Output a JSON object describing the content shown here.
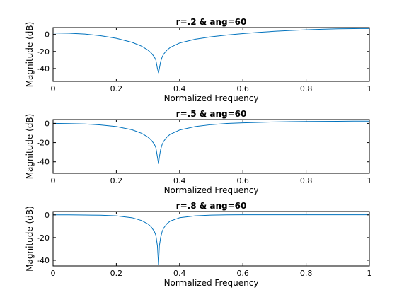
{
  "chart_data": [
    {
      "type": "line",
      "title": "r=.2 & ang=60",
      "xlabel": "Normalized Frequency",
      "ylabel": "Magnitude (dB)",
      "xlim": [
        0,
        1
      ],
      "ylim": [
        -55,
        8
      ],
      "xticks": [
        0,
        0.2,
        0.4,
        0.6,
        0.8,
        1
      ],
      "xtick_labels": [
        "0",
        "0.2",
        "0.4",
        "0.6",
        "0.8",
        "1"
      ],
      "yticks": [
        0,
        -20,
        -40
      ],
      "ytick_labels": [
        "0",
        "-20",
        "-40"
      ],
      "grid": false,
      "color": "#0072bd",
      "series": [
        {
          "x": [
            0,
            0.05,
            0.1,
            0.15,
            0.2,
            0.25,
            0.28,
            0.3,
            0.31,
            0.32,
            0.325,
            0.33,
            0.3333,
            0.336,
            0.34,
            0.345,
            0.35,
            0.36,
            0.37,
            0.4,
            0.45,
            0.5,
            0.55,
            0.6,
            0.65,
            0.7,
            0.75,
            0.8,
            0.85,
            0.9,
            0.95,
            1
          ],
          "y": [
            1.7,
            1.4,
            0.4,
            -1.5,
            -4.5,
            -9.3,
            -13.8,
            -18.4,
            -21.6,
            -26.3,
            -30.1,
            -40.1,
            -45,
            -40.1,
            -32.1,
            -26.3,
            -22.9,
            -18.4,
            -15.4,
            -10.1,
            -5.6,
            -2.8,
            -0.7,
            1.0,
            2.4,
            3.6,
            4.6,
            5.4,
            6.0,
            6.5,
            6.8,
            6.9
          ]
        }
      ]
    },
    {
      "type": "line",
      "title": "r=.5 & ang=60",
      "xlabel": "Normalized Frequency",
      "ylabel": "Magnitude (dB)",
      "xlim": [
        0,
        1
      ],
      "ylim": [
        -52,
        4
      ],
      "xticks": [
        0,
        0.2,
        0.4,
        0.6,
        0.8,
        1
      ],
      "xtick_labels": [
        "0",
        "0.2",
        "0.4",
        "0.6",
        "0.8",
        "1"
      ],
      "yticks": [
        0,
        -20,
        -40
      ],
      "ytick_labels": [
        "0",
        "-20",
        "-40"
      ],
      "grid": false,
      "color": "#0072bd",
      "series": [
        {
          "x": [
            0,
            0.05,
            0.1,
            0.15,
            0.2,
            0.25,
            0.28,
            0.3,
            0.31,
            0.32,
            0.325,
            0.33,
            0.3333,
            0.336,
            0.34,
            0.345,
            0.35,
            0.36,
            0.37,
            0.4,
            0.45,
            0.5,
            0.55,
            0.6,
            0.65,
            0.7,
            0.75,
            0.8,
            0.85,
            0.9,
            0.95,
            1
          ],
          "y": [
            0,
            -0.2,
            -0.6,
            -1.6,
            -3.3,
            -6.7,
            -10.3,
            -14.3,
            -17.3,
            -21.6,
            -25.3,
            -35.2,
            -42,
            -35.2,
            -27.3,
            -21.8,
            -18.5,
            -14.2,
            -11.4,
            -6.9,
            -3.3,
            -1.3,
            -0.1,
            0.6,
            1.1,
            1.5,
            1.8,
            2.0,
            2.1,
            2.2,
            2.3,
            2.3
          ]
        }
      ]
    },
    {
      "type": "line",
      "title": "r=.8 & ang=60",
      "xlabel": "Normalized Frequency",
      "ylabel": "Magnitude (dB)",
      "xlim": [
        0,
        1
      ],
      "ylim": [
        -45,
        3
      ],
      "xticks": [
        0,
        0.2,
        0.4,
        0.6,
        0.8,
        1
      ],
      "xtick_labels": [
        "0",
        "0.2",
        "0.4",
        "0.6",
        "0.8",
        "1"
      ],
      "yticks": [
        0,
        -20,
        -40
      ],
      "ytick_labels": [
        "0",
        "-20",
        "-40"
      ],
      "grid": false,
      "color": "#0072bd",
      "series": [
        {
          "x": [
            0,
            0.05,
            0.1,
            0.15,
            0.2,
            0.25,
            0.28,
            0.3,
            0.31,
            0.32,
            0.325,
            0.33,
            0.3333,
            0.336,
            0.34,
            0.345,
            0.35,
            0.36,
            0.37,
            0.4,
            0.45,
            0.5,
            0.55,
            0.6,
            0.65,
            0.7,
            0.75,
            0.8,
            0.85,
            0.9,
            0.95,
            1
          ],
          "y": [
            0,
            0,
            -0.1,
            -0.3,
            -0.8,
            -2.5,
            -5.0,
            -8.0,
            -10.5,
            -14.5,
            -18,
            -27.5,
            -44,
            -27.5,
            -20,
            -14.5,
            -11.5,
            -7.8,
            -5.5,
            -2.5,
            -0.8,
            -0.2,
            0,
            0.1,
            0.1,
            0.1,
            0.1,
            0.1,
            0.1,
            0.1,
            0.1,
            0.1
          ]
        }
      ]
    }
  ]
}
